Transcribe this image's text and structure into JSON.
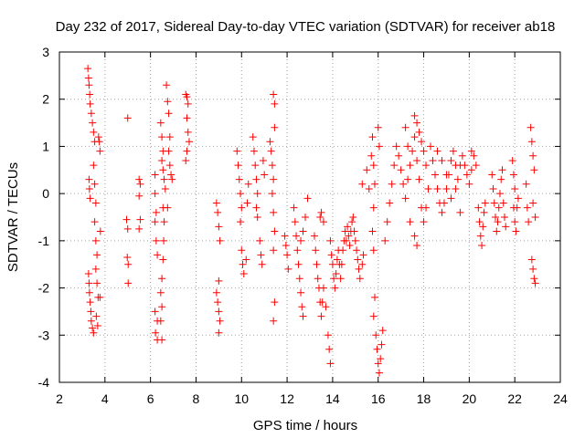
{
  "chart_data": {
    "type": "scatter",
    "title": "Day 232 of 2017, Sidereal Day-to-day VTEC variation (SDTVAR) for receiver ab18",
    "xlabel": "GPS time / hours",
    "ylabel": "SDTVAR / TECUs",
    "xlim": [
      2,
      24
    ],
    "ylim": [
      -4,
      3
    ],
    "xticks": [
      "2",
      "4",
      "6",
      "8",
      "10",
      "12",
      "14",
      "16",
      "18",
      "20",
      "22",
      "24"
    ],
    "yticks": [
      "3",
      "2",
      "1",
      "0",
      "-1",
      "-2",
      "-3",
      "-4"
    ],
    "grid": true,
    "marker": "+",
    "color": "#ff0000",
    "series": [
      {
        "name": "SDTVAR",
        "points": [
          [
            3.25,
            2.65
          ],
          [
            3.28,
            2.45
          ],
          [
            3.3,
            2.3
          ],
          [
            3.33,
            2.1
          ],
          [
            3.35,
            1.9
          ],
          [
            3.3,
            0.3
          ],
          [
            3.32,
            0.1
          ],
          [
            3.35,
            -0.1
          ],
          [
            3.28,
            -1.7
          ],
          [
            3.3,
            -1.9
          ],
          [
            3.32,
            -2.1
          ],
          [
            3.35,
            -2.3
          ],
          [
            3.38,
            -2.5
          ],
          [
            3.4,
            -2.7
          ],
          [
            3.45,
            -2.85
          ],
          [
            3.5,
            -2.95
          ],
          [
            3.4,
            1.7
          ],
          [
            3.45,
            1.5
          ],
          [
            3.5,
            1.3
          ],
          [
            3.55,
            1.1
          ],
          [
            3.5,
            0.6
          ],
          [
            3.55,
            0.2
          ],
          [
            3.6,
            -0.2
          ],
          [
            3.55,
            -0.6
          ],
          [
            3.6,
            -1.0
          ],
          [
            3.65,
            -1.3
          ],
          [
            3.6,
            -1.6
          ],
          [
            3.65,
            -1.9
          ],
          [
            3.7,
            -2.2
          ],
          [
            3.62,
            -2.6
          ],
          [
            3.68,
            -2.8
          ],
          [
            3.72,
            1.2
          ],
          [
            3.75,
            1.1
          ],
          [
            3.78,
            0.9
          ],
          [
            3.8,
            -0.8
          ],
          [
            3.78,
            -2.2
          ],
          [
            5.0,
            1.6
          ],
          [
            4.95,
            -0.55
          ],
          [
            5.0,
            -0.75
          ],
          [
            4.98,
            -1.35
          ],
          [
            5.02,
            -1.5
          ],
          [
            5.02,
            -1.9
          ],
          [
            5.5,
            0.3
          ],
          [
            5.55,
            0.2
          ],
          [
            5.5,
            -0.05
          ],
          [
            5.55,
            -0.55
          ],
          [
            5.5,
            -0.75
          ],
          [
            6.2,
            0.4
          ],
          [
            6.2,
            0.0
          ],
          [
            6.25,
            -0.4
          ],
          [
            6.2,
            -0.6
          ],
          [
            6.25,
            -1.0
          ],
          [
            6.3,
            -1.3
          ],
          [
            6.2,
            -2.5
          ],
          [
            6.3,
            -2.7
          ],
          [
            6.22,
            -2.95
          ],
          [
            6.3,
            -3.1
          ],
          [
            6.45,
            1.5
          ],
          [
            6.5,
            1.2
          ],
          [
            6.55,
            0.9
          ],
          [
            6.5,
            0.7
          ],
          [
            6.55,
            0.5
          ],
          [
            6.6,
            0.3
          ],
          [
            6.65,
            0.1
          ],
          [
            6.55,
            -0.3
          ],
          [
            6.6,
            -0.6
          ],
          [
            6.58,
            -1.0
          ],
          [
            6.55,
            -1.4
          ],
          [
            6.5,
            -1.8
          ],
          [
            6.45,
            -2.1
          ],
          [
            6.5,
            -2.4
          ],
          [
            6.45,
            -2.7
          ],
          [
            6.5,
            -3.1
          ],
          [
            6.7,
            2.3
          ],
          [
            6.75,
            1.95
          ],
          [
            6.8,
            1.7
          ],
          [
            6.85,
            1.2
          ],
          [
            6.8,
            0.9
          ],
          [
            6.85,
            0.6
          ],
          [
            6.9,
            0.4
          ],
          [
            6.95,
            0.3
          ],
          [
            6.75,
            -0.3
          ],
          [
            7.55,
            2.1
          ],
          [
            7.6,
            2.05
          ],
          [
            7.65,
            1.9
          ],
          [
            7.6,
            1.6
          ],
          [
            7.65,
            1.3
          ],
          [
            7.7,
            1.1
          ],
          [
            7.6,
            0.9
          ],
          [
            7.55,
            0.7
          ],
          [
            8.9,
            -0.2
          ],
          [
            8.95,
            -0.4
          ],
          [
            9.0,
            -0.7
          ],
          [
            9.05,
            -1.0
          ],
          [
            9.0,
            -1.85
          ],
          [
            8.9,
            -2.1
          ],
          [
            8.95,
            -2.3
          ],
          [
            9.0,
            -2.5
          ],
          [
            9.05,
            -2.7
          ],
          [
            9.0,
            -2.95
          ],
          [
            9.8,
            0.9
          ],
          [
            9.85,
            0.6
          ],
          [
            9.9,
            0.3
          ],
          [
            9.95,
            0.0
          ],
          [
            10.0,
            -0.3
          ],
          [
            9.95,
            -0.6
          ],
          [
            10.0,
            -1.2
          ],
          [
            10.05,
            -1.5
          ],
          [
            10.1,
            -1.7
          ],
          [
            10.2,
            -1.4
          ],
          [
            10.3,
            0.2
          ],
          [
            10.25,
            -0.2
          ],
          [
            10.5,
            1.2
          ],
          [
            10.55,
            0.9
          ],
          [
            10.6,
            0.6
          ],
          [
            10.65,
            0.3
          ],
          [
            10.7,
            0.0
          ],
          [
            10.65,
            -0.3
          ],
          [
            10.7,
            -0.5
          ],
          [
            10.8,
            -1.0
          ],
          [
            10.85,
            -1.3
          ],
          [
            10.9,
            -1.5
          ],
          [
            10.95,
            0.7
          ],
          [
            11.0,
            0.4
          ],
          [
            11.25,
            1.1
          ],
          [
            11.3,
            0.9
          ],
          [
            11.35,
            0.6
          ],
          [
            11.4,
            0.3
          ],
          [
            11.35,
            0.0
          ],
          [
            11.4,
            -0.4
          ],
          [
            11.45,
            -0.8
          ],
          [
            11.4,
            -1.2
          ],
          [
            11.45,
            -2.3
          ],
          [
            11.4,
            -2.7
          ],
          [
            11.4,
            2.1
          ],
          [
            11.45,
            1.9
          ],
          [
            11.45,
            1.4
          ],
          [
            11.9,
            -0.9
          ],
          [
            11.95,
            -1.1
          ],
          [
            12.0,
            -1.3
          ],
          [
            12.05,
            -1.6
          ],
          [
            12.3,
            -0.3
          ],
          [
            12.35,
            -0.6
          ],
          [
            12.4,
            -0.9
          ],
          [
            12.45,
            -1.2
          ],
          [
            12.5,
            -1.5
          ],
          [
            12.55,
            -1.8
          ],
          [
            12.6,
            -2.1
          ],
          [
            12.65,
            -2.4
          ],
          [
            12.7,
            -2.6
          ],
          [
            12.6,
            -1.0
          ],
          [
            12.7,
            -0.8
          ],
          [
            12.8,
            -0.5
          ],
          [
            12.9,
            -0.1
          ],
          [
            13.2,
            -0.9
          ],
          [
            13.25,
            -1.2
          ],
          [
            13.3,
            -1.5
          ],
          [
            13.35,
            -1.8
          ],
          [
            13.4,
            -2.0
          ],
          [
            13.45,
            -2.3
          ],
          [
            13.5,
            -2.6
          ],
          [
            13.55,
            -2.3
          ],
          [
            13.6,
            -2.0
          ],
          [
            13.7,
            -2.4
          ],
          [
            13.8,
            -3.0
          ],
          [
            13.85,
            -3.3
          ],
          [
            13.9,
            -3.6
          ],
          [
            13.45,
            -0.5
          ],
          [
            13.5,
            -0.4
          ],
          [
            13.6,
            -0.6
          ],
          [
            13.9,
            -1.0
          ],
          [
            13.95,
            -1.3
          ],
          [
            14.0,
            -1.5
          ],
          [
            14.05,
            -1.8
          ],
          [
            14.1,
            -2.0
          ],
          [
            14.15,
            -1.7
          ],
          [
            14.2,
            -1.4
          ],
          [
            14.25,
            -1.2
          ],
          [
            14.3,
            -1.5
          ],
          [
            14.35,
            -1.8
          ],
          [
            14.4,
            -1.5
          ],
          [
            14.45,
            -1.2
          ],
          [
            14.5,
            -1.0
          ],
          [
            14.55,
            -0.8
          ],
          [
            14.6,
            -1.0
          ],
          [
            14.65,
            -0.7
          ],
          [
            14.7,
            -0.9
          ],
          [
            14.75,
            -1.1
          ],
          [
            14.8,
            -0.8
          ],
          [
            14.85,
            -0.6
          ],
          [
            14.9,
            -0.5
          ],
          [
            14.95,
            -0.8
          ],
          [
            15.0,
            -1.0
          ],
          [
            15.05,
            -1.2
          ],
          [
            15.1,
            -1.4
          ],
          [
            15.15,
            -1.6
          ],
          [
            15.2,
            -1.8
          ],
          [
            15.3,
            -1.5
          ],
          [
            15.35,
            -1.3
          ],
          [
            15.3,
            0.2
          ],
          [
            15.5,
            0.5
          ],
          [
            15.6,
            0.1
          ],
          [
            15.7,
            0.8
          ],
          [
            15.75,
            1.2
          ],
          [
            15.8,
            0.6
          ],
          [
            15.85,
            0.2
          ],
          [
            15.8,
            -0.3
          ],
          [
            15.75,
            -0.8
          ],
          [
            15.8,
            -1.2
          ],
          [
            15.85,
            -2.2
          ],
          [
            15.8,
            -2.6
          ],
          [
            15.9,
            -3.0
          ],
          [
            15.95,
            -3.3
          ],
          [
            16.0,
            -3.6
          ],
          [
            16.05,
            -3.8
          ],
          [
            16.1,
            -3.5
          ],
          [
            16.15,
            -3.2
          ],
          [
            16.2,
            -2.9
          ],
          [
            16.0,
            1.4
          ],
          [
            16.05,
            1.0
          ],
          [
            16.3,
            -1.0
          ],
          [
            16.4,
            -0.6
          ],
          [
            16.5,
            -0.2
          ],
          [
            16.6,
            0.2
          ],
          [
            16.7,
            0.6
          ],
          [
            16.8,
            1.0
          ],
          [
            16.9,
            0.8
          ],
          [
            17.0,
            0.5
          ],
          [
            17.1,
            0.2
          ],
          [
            17.2,
            -0.1
          ],
          [
            17.3,
            0.3
          ],
          [
            17.4,
            0.6
          ],
          [
            17.5,
            0.9
          ],
          [
            17.6,
            1.2
          ],
          [
            17.7,
            0.7
          ],
          [
            17.8,
            0.3
          ],
          [
            17.9,
            -0.3
          ],
          [
            18.0,
            -0.6
          ],
          [
            18.1,
            -0.3
          ],
          [
            18.2,
            0.1
          ],
          [
            17.2,
            1.4
          ],
          [
            17.3,
            1.0
          ],
          [
            17.4,
            -0.6
          ],
          [
            17.6,
            -0.9
          ],
          [
            17.7,
            -1.1
          ],
          [
            17.6,
            1.65
          ],
          [
            17.7,
            1.5
          ],
          [
            17.8,
            1.3
          ],
          [
            17.9,
            1.1
          ],
          [
            18.0,
            0.9
          ],
          [
            18.1,
            0.6
          ],
          [
            18.3,
            1.0
          ],
          [
            18.4,
            0.7
          ],
          [
            18.5,
            0.4
          ],
          [
            18.6,
            0.1
          ],
          [
            18.7,
            -0.2
          ],
          [
            18.8,
            -0.4
          ],
          [
            18.9,
            -0.2
          ],
          [
            19.0,
            0.1
          ],
          [
            19.1,
            0.4
          ],
          [
            19.2,
            0.7
          ],
          [
            19.3,
            0.9
          ],
          [
            19.4,
            0.6
          ],
          [
            19.5,
            0.3
          ],
          [
            19.6,
            0.6
          ],
          [
            19.7,
            0.8
          ],
          [
            19.8,
            0.6
          ],
          [
            19.9,
            0.4
          ],
          [
            20.0,
            0.2
          ],
          [
            20.1,
            0.5
          ],
          [
            20.2,
            0.8
          ],
          [
            20.3,
            0.6
          ],
          [
            18.6,
            0.9
          ],
          [
            18.8,
            0.7
          ],
          [
            19.0,
            0.4
          ],
          [
            19.2,
            -0.1
          ],
          [
            19.4,
            0.1
          ],
          [
            19.6,
            -0.4
          ],
          [
            20.1,
            0.9
          ],
          [
            20.4,
            -0.3
          ],
          [
            20.45,
            -0.6
          ],
          [
            20.5,
            -0.9
          ],
          [
            20.55,
            -1.1
          ],
          [
            20.6,
            -0.7
          ],
          [
            20.65,
            -0.4
          ],
          [
            20.7,
            -0.2
          ],
          [
            21.0,
            0.4
          ],
          [
            21.05,
            0.1
          ],
          [
            21.1,
            -0.2
          ],
          [
            21.15,
            -0.5
          ],
          [
            21.2,
            -0.8
          ],
          [
            21.25,
            -0.6
          ],
          [
            21.3,
            -0.3
          ],
          [
            21.35,
            0.0
          ],
          [
            21.4,
            0.3
          ],
          [
            21.45,
            0.5
          ],
          [
            21.5,
            -0.2
          ],
          [
            21.55,
            -0.5
          ],
          [
            21.6,
            -0.7
          ],
          [
            21.9,
            0.7
          ],
          [
            21.95,
            0.4
          ],
          [
            22.0,
            0.1
          ],
          [
            21.95,
            -0.3
          ],
          [
            22.0,
            -0.6
          ],
          [
            22.05,
            -0.8
          ],
          [
            22.1,
            -0.3
          ],
          [
            22.15,
            -0.1
          ],
          [
            22.5,
            0.2
          ],
          [
            22.55,
            -0.3
          ],
          [
            22.6,
            -0.6
          ],
          [
            22.7,
            1.4
          ],
          [
            22.75,
            1.1
          ],
          [
            22.8,
            0.8
          ],
          [
            22.85,
            0.5
          ],
          [
            22.8,
            -0.2
          ],
          [
            22.9,
            -0.5
          ],
          [
            22.75,
            -1.4
          ],
          [
            22.8,
            -1.6
          ],
          [
            22.85,
            -1.8
          ],
          [
            22.9,
            -1.9
          ]
        ]
      }
    ]
  }
}
